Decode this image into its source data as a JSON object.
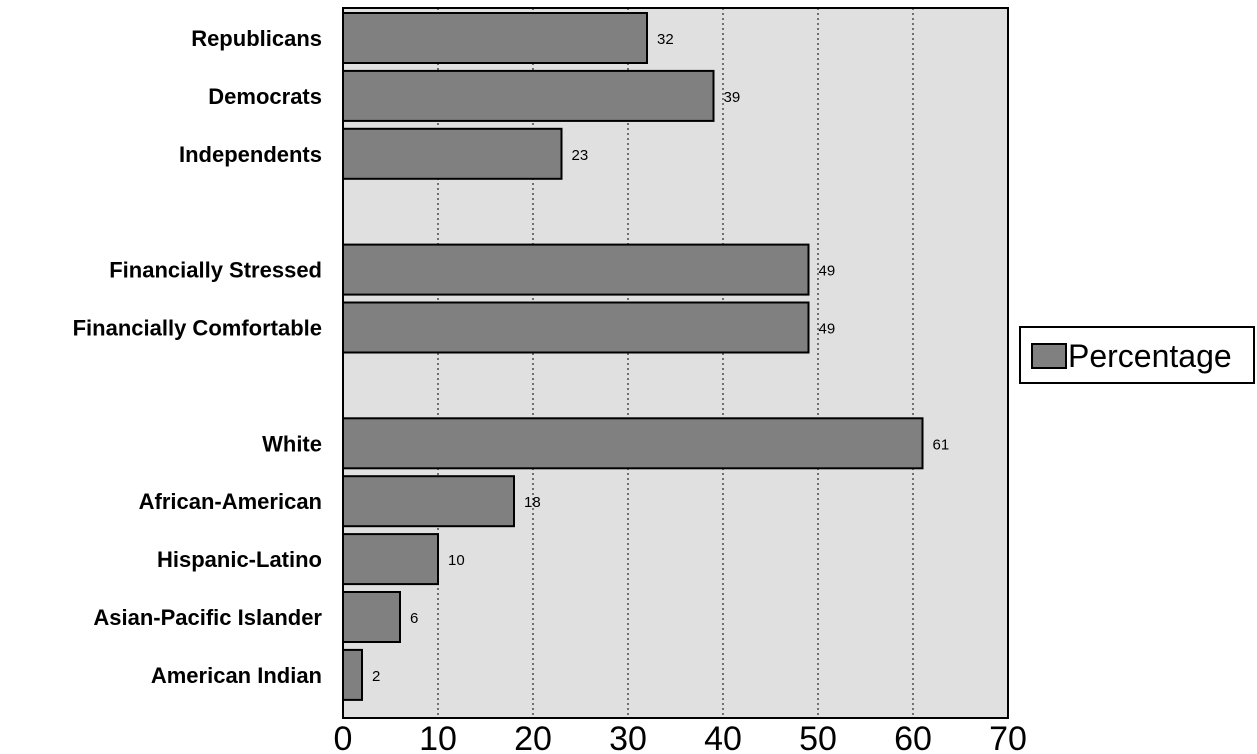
{
  "chart_data": {
    "type": "bar",
    "orientation": "horizontal",
    "categories": [
      "Republicans",
      "Democrats",
      "Independents",
      "Financially Stressed",
      "Financially Comfortable",
      "White",
      "African-American",
      "Hispanic-Latino",
      "Asian-Pacific Islander",
      "American Indian"
    ],
    "series": [
      {
        "name": "Percentage",
        "values": [
          32,
          39,
          23,
          49,
          49,
          61,
          18,
          10,
          6,
          2
        ]
      }
    ],
    "value_labels": [
      "32",
      "39",
      "23",
      "49",
      "49",
      "61",
      "18",
      "10",
      "6",
      "2"
    ],
    "groups": [
      [
        "Republicans",
        "Democrats",
        "Independents"
      ],
      [
        "Financially Stressed",
        "Financially Comfortable"
      ],
      [
        "White",
        "African-American",
        "Hispanic-Latino",
        "Asian-Pacific Islander",
        "American Indian"
      ]
    ],
    "xlim": [
      0,
      70
    ],
    "x_ticks": [
      0,
      10,
      20,
      30,
      40,
      50,
      60,
      70
    ],
    "x_tick_labels": [
      "0",
      "10",
      "20",
      "30",
      "40",
      "50",
      "60",
      "70"
    ],
    "grid": "vertical dotted",
    "legend_position": "right",
    "colors": {
      "bar": "#808080",
      "plot_background": "#e0e0e0",
      "border": "#000000"
    }
  }
}
